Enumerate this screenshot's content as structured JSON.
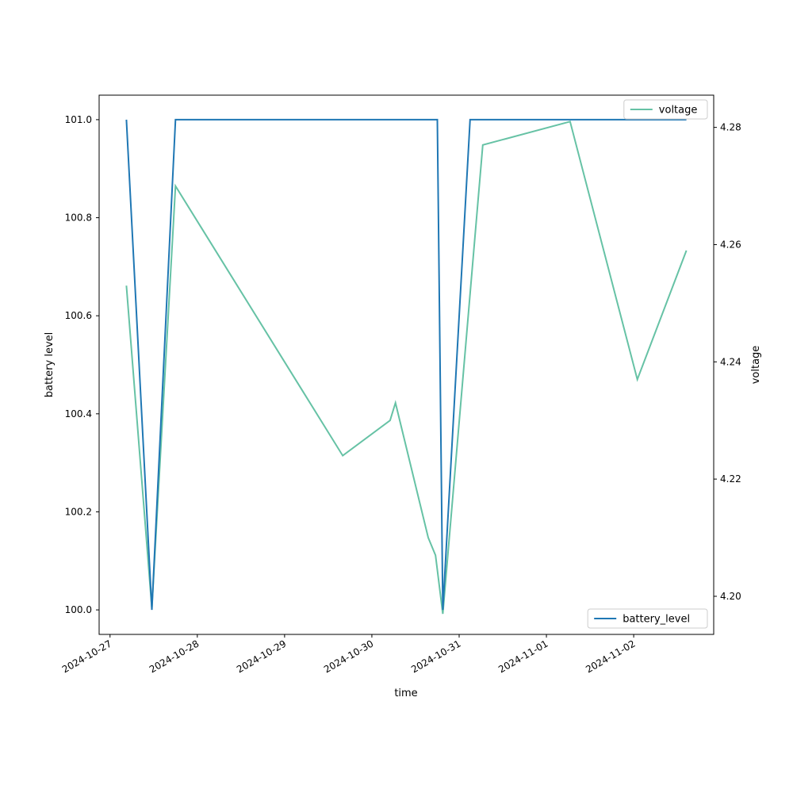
{
  "chart_data": {
    "type": "line",
    "xlabel": "time",
    "ylabel_left": "battery level",
    "ylabel_right": "voltage",
    "x_ticks": [
      "2024-10-27",
      "2024-10-28",
      "2024-10-29",
      "2024-10-30",
      "2024-10-31",
      "2024-11-01",
      "2024-11-02"
    ],
    "x_range": [
      "2024-10-26 21:00",
      "2024-11-02 22:00"
    ],
    "left_axis": {
      "ylim": [
        99.95,
        101.05
      ],
      "ticks": [
        "100.0",
        "100.2",
        "100.4",
        "100.6",
        "100.8",
        "101.0"
      ],
      "tick_values": [
        100.0,
        100.2,
        100.4,
        100.6,
        100.8,
        101.0
      ]
    },
    "right_axis": {
      "ylim": [
        4.1935,
        4.2855
      ],
      "ticks": [
        "4.20",
        "4.22",
        "4.24",
        "4.26",
        "4.28"
      ],
      "tick_values": [
        4.2,
        4.22,
        4.24,
        4.26,
        4.28
      ]
    },
    "series": [
      {
        "name": "battery_level",
        "axis": "left",
        "color": "#1f77b4",
        "legend_position": "lower right",
        "points": [
          [
            "2024-10-27 04:30",
            101.0
          ],
          [
            "2024-10-27 11:30",
            100.0
          ],
          [
            "2024-10-27 18:00",
            101.0
          ],
          [
            "2024-10-30 18:00",
            101.0
          ],
          [
            "2024-10-30 19:30",
            100.0
          ],
          [
            "2024-10-31 03:00",
            101.0
          ],
          [
            "2024-11-02 14:30",
            101.0
          ]
        ]
      },
      {
        "name": "voltage",
        "axis": "right",
        "color": "#66c2a5",
        "legend_position": "upper right",
        "points": [
          [
            "2024-10-27 04:30",
            4.253
          ],
          [
            "2024-10-27 11:30",
            4.198
          ],
          [
            "2024-10-27 18:00",
            4.27
          ],
          [
            "2024-10-29 16:00",
            4.224
          ],
          [
            "2024-10-30 05:00",
            4.23
          ],
          [
            "2024-10-30 06:30",
            4.233
          ],
          [
            "2024-10-30 15:30",
            4.21
          ],
          [
            "2024-10-30 17:30",
            4.207
          ],
          [
            "2024-10-30 19:30",
            4.197
          ],
          [
            "2024-10-31 06:30",
            4.277
          ],
          [
            "2024-11-01 06:30",
            4.281
          ],
          [
            "2024-11-02 01:00",
            4.237
          ],
          [
            "2024-11-02 14:30",
            4.259
          ]
        ]
      }
    ]
  }
}
